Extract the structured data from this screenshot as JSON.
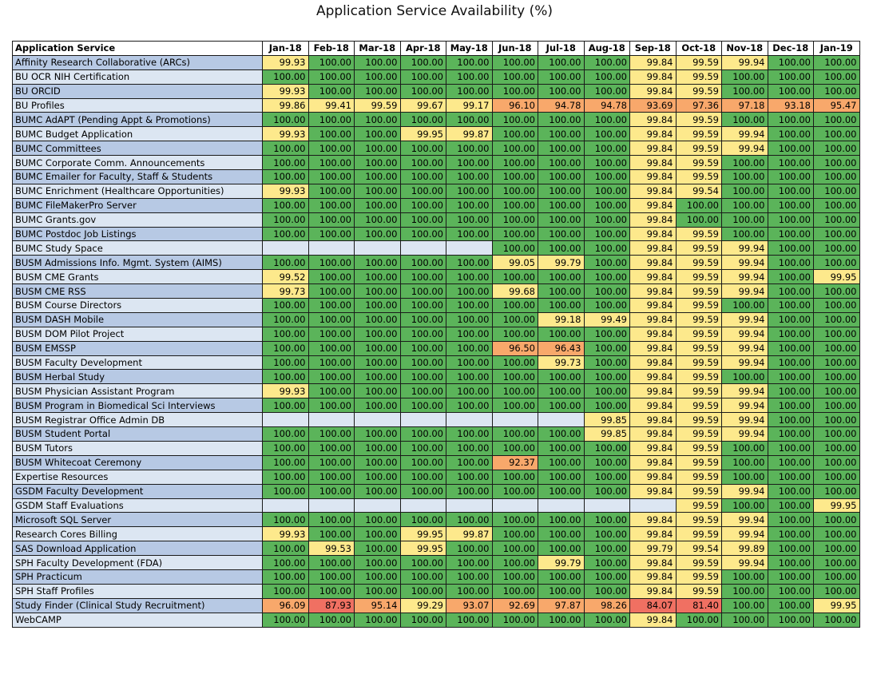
{
  "title": "Application Service Availability (%)",
  "header": {
    "service_label": "Application Service",
    "months": [
      "Jan-18",
      "Feb-18",
      "Mar-18",
      "Apr-18",
      "May-18",
      "Jun-18",
      "Jul-18",
      "Aug-18",
      "Sep-18",
      "Oct-18",
      "Nov-18",
      "Dec-18",
      "Jan-19"
    ]
  },
  "colors": {
    "green": "#5bb45a",
    "yellow": "#fde98c",
    "orange": "#f8a86b",
    "red": "#f07062",
    "name_blue": "#b7c9e4",
    "name_pale": "#dce6f2",
    "empty_blue": "#b7c9e4",
    "empty_pale": "#dce6f2"
  },
  "rows": [
    {
      "name": "Affinity Research Collaborative (ARCs)",
      "values": [
        "99.93",
        "100.00",
        "100.00",
        "100.00",
        "100.00",
        "100.00",
        "100.00",
        "100.00",
        "99.84",
        "99.59",
        "99.94",
        "100.00",
        "100.00"
      ]
    },
    {
      "name": "BU OCR NIH Certification",
      "values": [
        "100.00",
        "100.00",
        "100.00",
        "100.00",
        "100.00",
        "100.00",
        "100.00",
        "100.00",
        "99.84",
        "99.59",
        "100.00",
        "100.00",
        "100.00"
      ]
    },
    {
      "name": "BU ORCID",
      "values": [
        "99.93",
        "100.00",
        "100.00",
        "100.00",
        "100.00",
        "100.00",
        "100.00",
        "100.00",
        "99.84",
        "99.59",
        "100.00",
        "100.00",
        "100.00"
      ]
    },
    {
      "name": "BU Profiles",
      "values": [
        "99.86",
        "99.41",
        "99.59",
        "99.67",
        "99.17",
        "96.10",
        "94.78",
        "94.78",
        "93.69",
        "97.36",
        "97.18",
        "93.18",
        "95.47"
      ]
    },
    {
      "name": "BUMC AdAPT (Pending Appt & Promotions)",
      "values": [
        "100.00",
        "100.00",
        "100.00",
        "100.00",
        "100.00",
        "100.00",
        "100.00",
        "100.00",
        "99.84",
        "99.59",
        "100.00",
        "100.00",
        "100.00"
      ]
    },
    {
      "name": "BUMC Budget Application",
      "values": [
        "99.93",
        "100.00",
        "100.00",
        "99.95",
        "99.87",
        "100.00",
        "100.00",
        "100.00",
        "99.84",
        "99.59",
        "99.94",
        "100.00",
        "100.00"
      ]
    },
    {
      "name": "BUMC Committees",
      "values": [
        "100.00",
        "100.00",
        "100.00",
        "100.00",
        "100.00",
        "100.00",
        "100.00",
        "100.00",
        "99.84",
        "99.59",
        "99.94",
        "100.00",
        "100.00"
      ]
    },
    {
      "name": "BUMC Corporate Comm. Announcements",
      "values": [
        "100.00",
        "100.00",
        "100.00",
        "100.00",
        "100.00",
        "100.00",
        "100.00",
        "100.00",
        "99.84",
        "99.59",
        "100.00",
        "100.00",
        "100.00"
      ]
    },
    {
      "name": "BUMC Emailer for Faculty, Staff & Students",
      "values": [
        "100.00",
        "100.00",
        "100.00",
        "100.00",
        "100.00",
        "100.00",
        "100.00",
        "100.00",
        "99.84",
        "99.59",
        "100.00",
        "100.00",
        "100.00"
      ]
    },
    {
      "name": "BUMC Enrichment (Healthcare Opportunities)",
      "values": [
        "99.93",
        "100.00",
        "100.00",
        "100.00",
        "100.00",
        "100.00",
        "100.00",
        "100.00",
        "99.84",
        "99.54",
        "100.00",
        "100.00",
        "100.00"
      ]
    },
    {
      "name": "BUMC FileMakerPro Server",
      "values": [
        "100.00",
        "100.00",
        "100.00",
        "100.00",
        "100.00",
        "100.00",
        "100.00",
        "100.00",
        "99.84",
        "100.00",
        "100.00",
        "100.00",
        "100.00"
      ]
    },
    {
      "name": "BUMC Grants.gov",
      "values": [
        "100.00",
        "100.00",
        "100.00",
        "100.00",
        "100.00",
        "100.00",
        "100.00",
        "100.00",
        "99.84",
        "100.00",
        "100.00",
        "100.00",
        "100.00"
      ]
    },
    {
      "name": "BUMC Postdoc Job Listings",
      "values": [
        "100.00",
        "100.00",
        "100.00",
        "100.00",
        "100.00",
        "100.00",
        "100.00",
        "100.00",
        "99.84",
        "99.59",
        "100.00",
        "100.00",
        "100.00"
      ]
    },
    {
      "name": "BUMC Study Space",
      "values": [
        "",
        "",
        "",
        "",
        "",
        "100.00",
        "100.00",
        "100.00",
        "99.84",
        "99.59",
        "99.94",
        "100.00",
        "100.00"
      ]
    },
    {
      "name": "BUSM Admissions Info. Mgmt. System (AIMS)",
      "values": [
        "100.00",
        "100.00",
        "100.00",
        "100.00",
        "100.00",
        "99.05",
        "99.79",
        "100.00",
        "99.84",
        "99.59",
        "99.94",
        "100.00",
        "100.00"
      ]
    },
    {
      "name": "BUSM CME Grants",
      "values": [
        "99.52",
        "100.00",
        "100.00",
        "100.00",
        "100.00",
        "100.00",
        "100.00",
        "100.00",
        "99.84",
        "99.59",
        "99.94",
        "100.00",
        "99.95"
      ]
    },
    {
      "name": "BUSM CME RSS",
      "values": [
        "99.73",
        "100.00",
        "100.00",
        "100.00",
        "100.00",
        "99.68",
        "100.00",
        "100.00",
        "99.84",
        "99.59",
        "99.94",
        "100.00",
        "100.00"
      ]
    },
    {
      "name": "BUSM Course Directors",
      "values": [
        "100.00",
        "100.00",
        "100.00",
        "100.00",
        "100.00",
        "100.00",
        "100.00",
        "100.00",
        "99.84",
        "99.59",
        "100.00",
        "100.00",
        "100.00"
      ]
    },
    {
      "name": "BUSM DASH Mobile",
      "values": [
        "100.00",
        "100.00",
        "100.00",
        "100.00",
        "100.00",
        "100.00",
        "99.18",
        "99.49",
        "99.84",
        "99.59",
        "99.94",
        "100.00",
        "100.00"
      ]
    },
    {
      "name": "BUSM DOM Pilot Project",
      "values": [
        "100.00",
        "100.00",
        "100.00",
        "100.00",
        "100.00",
        "100.00",
        "100.00",
        "100.00",
        "99.84",
        "99.59",
        "99.94",
        "100.00",
        "100.00"
      ]
    },
    {
      "name": "BUSM EMSSP",
      "values": [
        "100.00",
        "100.00",
        "100.00",
        "100.00",
        "100.00",
        "96.50",
        "96.43",
        "100.00",
        "99.84",
        "99.59",
        "99.94",
        "100.00",
        "100.00"
      ]
    },
    {
      "name": "BUSM Faculty Development",
      "values": [
        "100.00",
        "100.00",
        "100.00",
        "100.00",
        "100.00",
        "100.00",
        "99.73",
        "100.00",
        "99.84",
        "99.59",
        "99.94",
        "100.00",
        "100.00"
      ]
    },
    {
      "name": "BUSM Herbal Study",
      "values": [
        "100.00",
        "100.00",
        "100.00",
        "100.00",
        "100.00",
        "100.00",
        "100.00",
        "100.00",
        "99.84",
        "99.59",
        "100.00",
        "100.00",
        "100.00"
      ]
    },
    {
      "name": "BUSM Physician Assistant Program",
      "values": [
        "99.93",
        "100.00",
        "100.00",
        "100.00",
        "100.00",
        "100.00",
        "100.00",
        "100.00",
        "99.84",
        "99.59",
        "99.94",
        "100.00",
        "100.00"
      ]
    },
    {
      "name": "BUSM Program in Biomedical Sci Interviews",
      "values": [
        "100.00",
        "100.00",
        "100.00",
        "100.00",
        "100.00",
        "100.00",
        "100.00",
        "100.00",
        "99.84",
        "99.59",
        "99.94",
        "100.00",
        "100.00"
      ]
    },
    {
      "name": "BUSM Registrar Office Admin DB",
      "values": [
        "",
        "",
        "",
        "",
        "",
        "",
        "",
        "99.85",
        "99.84",
        "99.59",
        "99.94",
        "100.00",
        "100.00"
      ]
    },
    {
      "name": "BUSM Student Portal",
      "values": [
        "100.00",
        "100.00",
        "100.00",
        "100.00",
        "100.00",
        "100.00",
        "100.00",
        "99.85",
        "99.84",
        "99.59",
        "99.94",
        "100.00",
        "100.00"
      ]
    },
    {
      "name": "BUSM Tutors",
      "values": [
        "100.00",
        "100.00",
        "100.00",
        "100.00",
        "100.00",
        "100.00",
        "100.00",
        "100.00",
        "99.84",
        "99.59",
        "100.00",
        "100.00",
        "100.00"
      ]
    },
    {
      "name": "BUSM Whitecoat Ceremony",
      "values": [
        "100.00",
        "100.00",
        "100.00",
        "100.00",
        "100.00",
        "92.37",
        "100.00",
        "100.00",
        "99.84",
        "99.59",
        "100.00",
        "100.00",
        "100.00"
      ]
    },
    {
      "name": "Expertise Resources",
      "values": [
        "100.00",
        "100.00",
        "100.00",
        "100.00",
        "100.00",
        "100.00",
        "100.00",
        "100.00",
        "99.84",
        "99.59",
        "100.00",
        "100.00",
        "100.00"
      ]
    },
    {
      "name": "GSDM Faculty Development",
      "values": [
        "100.00",
        "100.00",
        "100.00",
        "100.00",
        "100.00",
        "100.00",
        "100.00",
        "100.00",
        "99.84",
        "99.59",
        "99.94",
        "100.00",
        "100.00"
      ]
    },
    {
      "name": "GSDM Staff Evaluations",
      "values": [
        "",
        "",
        "",
        "",
        "",
        "",
        "",
        "",
        "",
        "99.59",
        "100.00",
        "100.00",
        "99.95"
      ]
    },
    {
      "name": "Microsoft SQL Server",
      "values": [
        "100.00",
        "100.00",
        "100.00",
        "100.00",
        "100.00",
        "100.00",
        "100.00",
        "100.00",
        "99.84",
        "99.59",
        "99.94",
        "100.00",
        "100.00"
      ]
    },
    {
      "name": "Research Cores Billing",
      "values": [
        "99.93",
        "100.00",
        "100.00",
        "99.95",
        "99.87",
        "100.00",
        "100.00",
        "100.00",
        "99.84",
        "99.59",
        "99.94",
        "100.00",
        "100.00"
      ]
    },
    {
      "name": "SAS Download Application",
      "values": [
        "100.00",
        "99.53",
        "100.00",
        "99.95",
        "100.00",
        "100.00",
        "100.00",
        "100.00",
        "99.79",
        "99.54",
        "99.89",
        "100.00",
        "100.00"
      ]
    },
    {
      "name": "SPH Faculty Development (FDA)",
      "values": [
        "100.00",
        "100.00",
        "100.00",
        "100.00",
        "100.00",
        "100.00",
        "99.79",
        "100.00",
        "99.84",
        "99.59",
        "99.94",
        "100.00",
        "100.00"
      ]
    },
    {
      "name": "SPH Practicum",
      "values": [
        "100.00",
        "100.00",
        "100.00",
        "100.00",
        "100.00",
        "100.00",
        "100.00",
        "100.00",
        "99.84",
        "99.59",
        "100.00",
        "100.00",
        "100.00"
      ]
    },
    {
      "name": "SPH Staff Profiles",
      "values": [
        "100.00",
        "100.00",
        "100.00",
        "100.00",
        "100.00",
        "100.00",
        "100.00",
        "100.00",
        "99.84",
        "99.59",
        "100.00",
        "100.00",
        "100.00"
      ]
    },
    {
      "name": "Study Finder (Clinical Study Recruitment)",
      "values": [
        "96.09",
        "87.93",
        "95.14",
        "99.29",
        "93.07",
        "92.69",
        "97.87",
        "98.26",
        "84.07",
        "81.40",
        "100.00",
        "100.00",
        "99.95"
      ]
    },
    {
      "name": "WebCAMP",
      "values": [
        "100.00",
        "100.00",
        "100.00",
        "100.00",
        "100.00",
        "100.00",
        "100.00",
        "100.00",
        "99.84",
        "100.00",
        "100.00",
        "100.00",
        "100.00"
      ]
    }
  ]
}
